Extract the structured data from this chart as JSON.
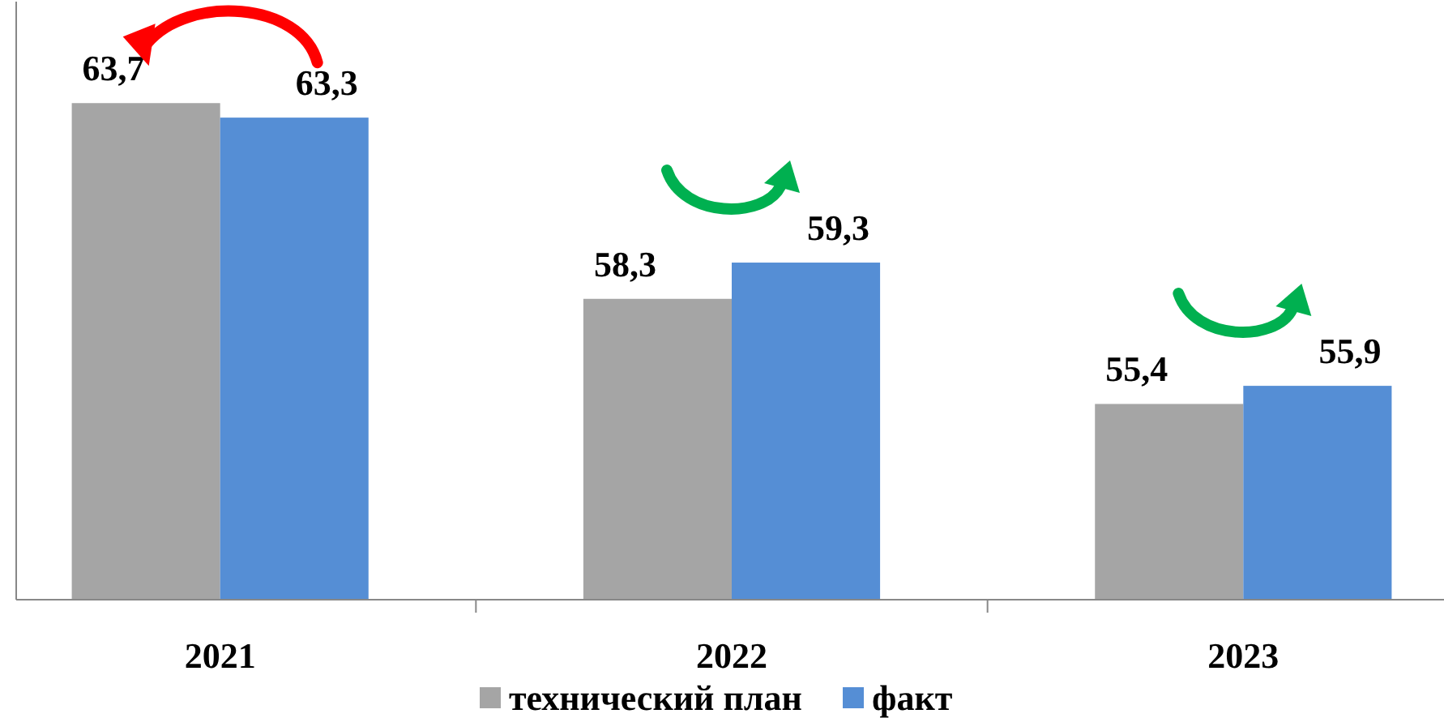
{
  "chart_data": {
    "type": "bar",
    "categories": [
      "2021",
      "2022",
      "2023"
    ],
    "series": [
      {
        "name": "технический план",
        "color": "#a5a5a5",
        "values": [
          63.7,
          58.3,
          55.4
        ],
        "value_labels": [
          "63,7",
          "58,3",
          "55,4"
        ]
      },
      {
        "name": "факт",
        "color": "#558ed5",
        "values": [
          63.3,
          59.3,
          55.9
        ],
        "value_labels": [
          "63,3",
          "59,3",
          "55,9"
        ]
      }
    ],
    "ylim": [
      50,
      66.5
    ],
    "tick_labels": "x",
    "legend": "bottom"
  }
}
